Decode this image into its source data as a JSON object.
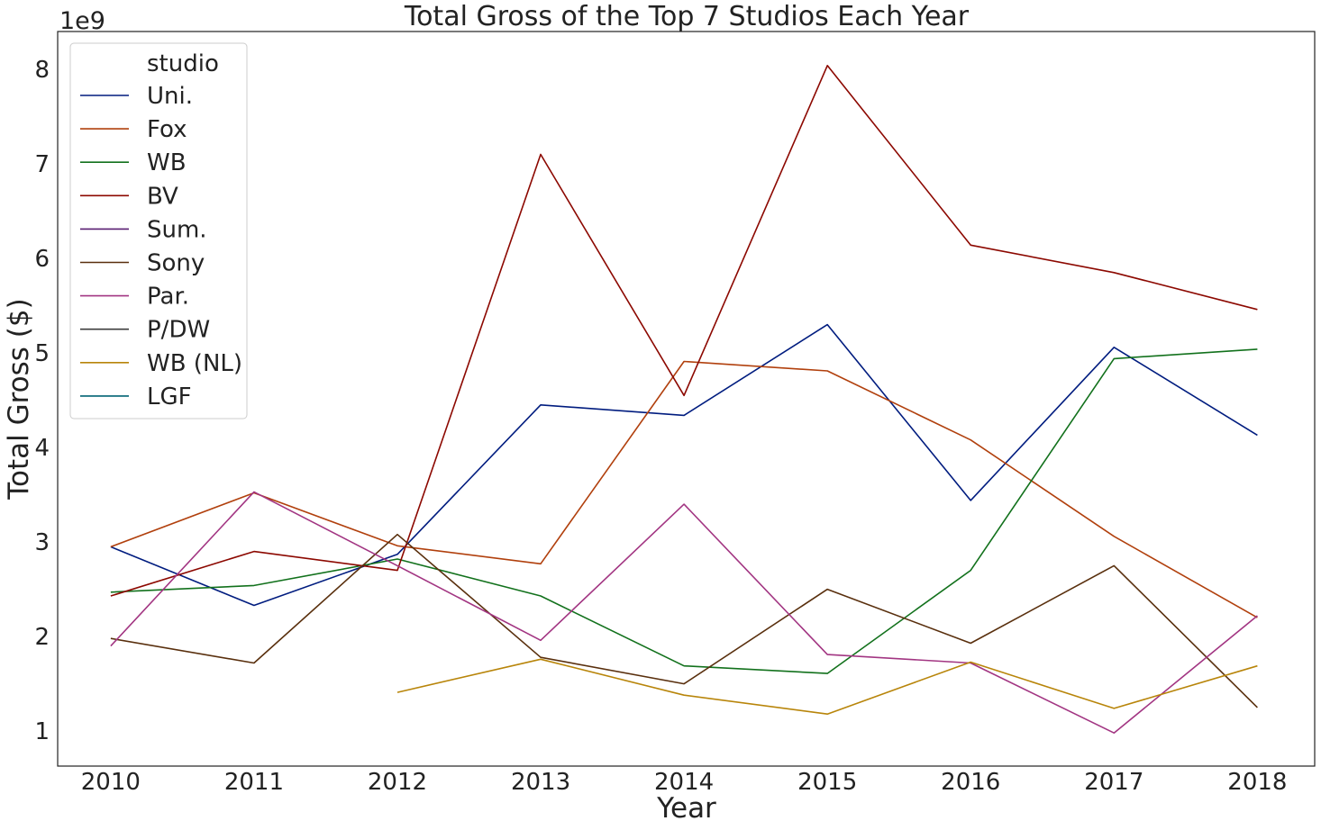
{
  "chart_data": {
    "type": "line",
    "title": "Total Gross of the Top 7 Studios Each Year",
    "xlabel": "Year",
    "ylabel": "Total Gross ($)",
    "y_offset_label": "1e9",
    "xlim": [
      2009.63,
      2018.4
    ],
    "ylim": [
      0.63,
      8.4
    ],
    "x_ticks": [
      2010,
      2011,
      2012,
      2013,
      2014,
      2015,
      2016,
      2017,
      2018
    ],
    "y_ticks": [
      1,
      2,
      3,
      4,
      5,
      6,
      7,
      8
    ],
    "grid": false,
    "legend": {
      "title": "studio",
      "position": "top-left"
    },
    "series": [
      {
        "name": "Uni.",
        "color": "#001c7f",
        "points": [
          [
            2010,
            2.95
          ],
          [
            2011,
            2.33
          ],
          [
            2012,
            2.87
          ],
          [
            2013,
            4.45
          ],
          [
            2014,
            4.34
          ],
          [
            2015,
            5.3
          ],
          [
            2016,
            3.44
          ],
          [
            2017,
            5.06
          ],
          [
            2018,
            4.13
          ]
        ]
      },
      {
        "name": "Fox",
        "color": "#b1400d",
        "points": [
          [
            2010,
            2.95
          ],
          [
            2011,
            3.52
          ],
          [
            2012,
            2.96
          ],
          [
            2013,
            2.77
          ],
          [
            2014,
            4.91
          ],
          [
            2015,
            4.81
          ],
          [
            2016,
            4.08
          ],
          [
            2017,
            3.06
          ],
          [
            2018,
            2.2
          ]
        ]
      },
      {
        "name": "WB",
        "color": "#12711c",
        "points": [
          [
            2010,
            2.47
          ],
          [
            2011,
            2.54
          ],
          [
            2012,
            2.82
          ],
          [
            2013,
            2.43
          ],
          [
            2014,
            1.69
          ],
          [
            2015,
            1.61
          ],
          [
            2016,
            2.7
          ],
          [
            2017,
            4.94
          ],
          [
            2018,
            5.04
          ]
        ]
      },
      {
        "name": "BV",
        "color": "#8c0800",
        "points": [
          [
            2010,
            2.43
          ],
          [
            2011,
            2.9
          ],
          [
            2012,
            2.7
          ],
          [
            2013,
            7.1
          ],
          [
            2014,
            4.55
          ],
          [
            2015,
            8.04
          ],
          [
            2016,
            6.14
          ],
          [
            2017,
            5.85
          ],
          [
            2018,
            5.46
          ]
        ]
      },
      {
        "name": "Sum.",
        "color": "#591e71",
        "points": []
      },
      {
        "name": "Sony",
        "color": "#592f0d",
        "points": [
          [
            2010,
            1.98
          ],
          [
            2011,
            1.72
          ],
          [
            2012,
            3.08
          ],
          [
            2013,
            1.78
          ],
          [
            2014,
            1.5
          ],
          [
            2015,
            2.5
          ],
          [
            2016,
            1.93
          ],
          [
            2017,
            2.75
          ],
          [
            2018,
            1.25
          ]
        ]
      },
      {
        "name": "Par.",
        "color": "#a23582",
        "points": [
          [
            2010,
            1.9
          ],
          [
            2011,
            3.53
          ],
          [
            2012,
            2.75
          ],
          [
            2013,
            1.96
          ],
          [
            2014,
            3.4
          ],
          [
            2015,
            1.81
          ],
          [
            2016,
            1.72
          ],
          [
            2017,
            0.98
          ],
          [
            2018,
            2.22
          ]
        ]
      },
      {
        "name": "P/DW",
        "color": "#3c3c3c",
        "points": []
      },
      {
        "name": "WB (NL)",
        "color": "#b8850a",
        "points": [
          [
            2012,
            1.41
          ],
          [
            2013,
            1.76
          ],
          [
            2014,
            1.38
          ],
          [
            2015,
            1.18
          ],
          [
            2016,
            1.73
          ],
          [
            2017,
            1.24
          ],
          [
            2018,
            1.69
          ]
        ]
      },
      {
        "name": "LGF",
        "color": "#006374",
        "points": []
      }
    ]
  }
}
